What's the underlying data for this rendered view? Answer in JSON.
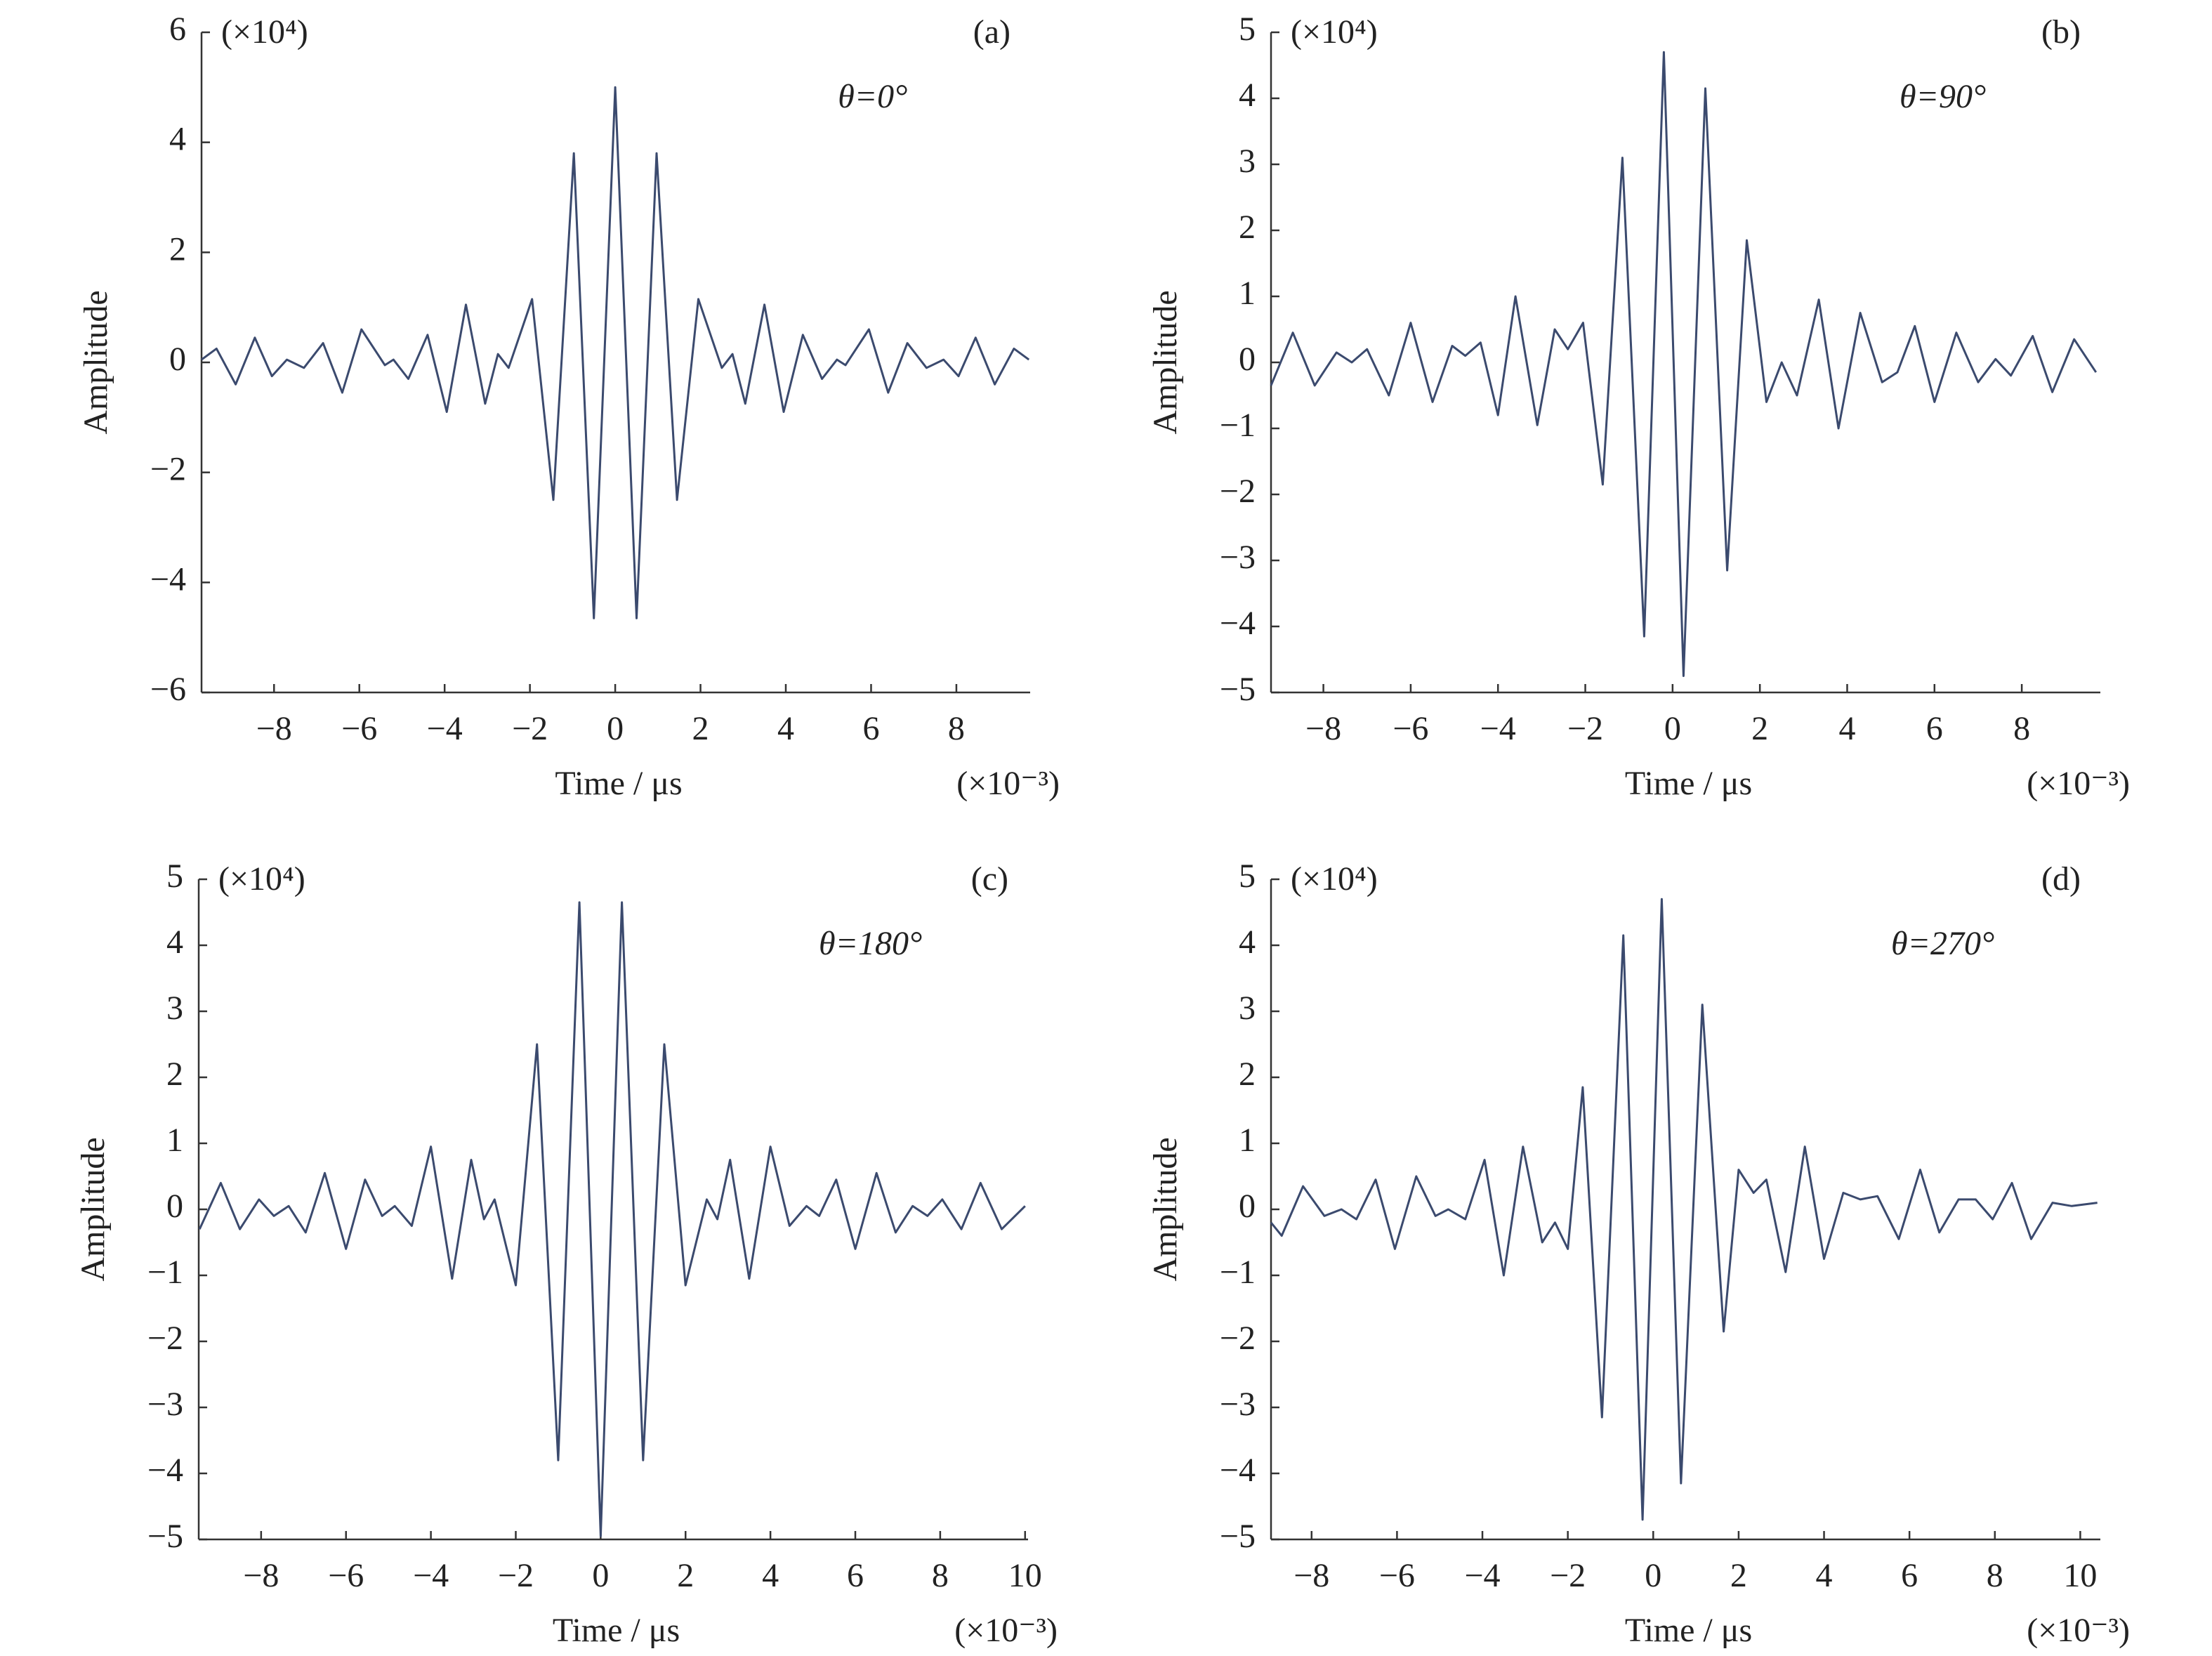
{
  "chart_data": [
    {
      "type": "line",
      "label": "(a)",
      "annotation": "θ=0°",
      "y_multiplier": "(×10⁴)",
      "x_multiplier": "(×10⁻³)",
      "xlabel": "Time / μs",
      "ylabel": "Amplitude",
      "color": "#3b4a6e",
      "xlim": [
        -9.7,
        9.73
      ],
      "ylim": [
        -6,
        6
      ],
      "xticks": [
        {
          "value": -8,
          "label": "−8"
        },
        {
          "value": -6,
          "label": "−6"
        },
        {
          "value": -4,
          "label": "−4"
        },
        {
          "value": -2,
          "label": "−2"
        },
        0,
        2,
        4,
        6,
        8
      ],
      "yticks": [
        {
          "value": -6,
          "label": "−6"
        },
        {
          "value": -4,
          "label": "−4"
        },
        {
          "value": -2,
          "label": "−2"
        },
        0,
        2,
        4,
        6
      ],
      "x": [
        -9.7,
        -9.35,
        -8.9,
        -8.45,
        -8.05,
        -7.7,
        -7.3,
        -6.85,
        -6.4,
        -5.95,
        -5.4,
        -5.2,
        -4.85,
        -4.4,
        -3.95,
        -3.5,
        -3.05,
        -2.75,
        -2.5,
        -1.95,
        -1.45,
        -0.97,
        -0.5,
        0,
        0.5,
        0.97,
        1.45,
        1.95,
        2.5,
        2.75,
        3.05,
        3.5,
        3.95,
        4.4,
        4.85,
        5.2,
        5.4,
        5.95,
        6.4,
        6.85,
        7.3,
        7.7,
        8.05,
        8.45,
        8.9,
        9.35,
        9.7
      ],
      "values": [
        0.05,
        0.25,
        -0.4,
        0.45,
        -0.25,
        0.05,
        -0.1,
        0.35,
        -0.55,
        0.6,
        -0.05,
        0.05,
        -0.3,
        0.5,
        -0.9,
        1.05,
        -0.75,
        0.15,
        -0.1,
        1.15,
        -2.5,
        3.8,
        -4.65,
        5.0,
        -4.65,
        3.8,
        -2.5,
        1.15,
        -0.1,
        0.15,
        -0.75,
        1.05,
        -0.9,
        0.5,
        -0.3,
        0.05,
        -0.05,
        0.6,
        -0.55,
        0.35,
        -0.1,
        0.05,
        -0.25,
        0.45,
        -0.4,
        0.25,
        0.05
      ]
    },
    {
      "type": "line",
      "label": "(b)",
      "annotation": "θ=90°",
      "y_multiplier": "(×10⁴)",
      "x_multiplier": "(×10⁻³)",
      "xlabel": "Time / μs",
      "ylabel": "Amplitude",
      "color": "#3b4a6e",
      "xlim": [
        -9.2,
        9.8
      ],
      "ylim": [
        -5,
        5
      ],
      "xticks": [
        {
          "value": -8,
          "label": "−8"
        },
        {
          "value": -6,
          "label": "−6"
        },
        {
          "value": -4,
          "label": "−4"
        },
        {
          "value": -2,
          "label": "−2"
        },
        0,
        2,
        4,
        6,
        8
      ],
      "yticks": [
        {
          "value": -5,
          "label": "−5"
        },
        {
          "value": -4,
          "label": "−4"
        },
        {
          "value": -3,
          "label": "−3"
        },
        {
          "value": -2,
          "label": "−2"
        },
        {
          "value": -1,
          "label": "−1"
        },
        0,
        1,
        2,
        3,
        4,
        5
      ],
      "x": [
        -9.2,
        -8.7,
        -8.2,
        -7.7,
        -7.35,
        -7.0,
        -6.5,
        -6.0,
        -5.5,
        -5.05,
        -4.75,
        -4.4,
        -4.0,
        -3.6,
        -3.1,
        -2.7,
        -2.4,
        -2.05,
        -1.6,
        -1.15,
        -0.65,
        -0.2,
        0.25,
        0.75,
        1.25,
        1.7,
        2.15,
        2.5,
        2.85,
        3.35,
        3.8,
        4.3,
        4.8,
        5.15,
        5.55,
        6.0,
        6.5,
        7.0,
        7.4,
        7.75,
        8.25,
        8.7,
        9.2,
        9.7
      ],
      "values": [
        -0.35,
        0.45,
        -0.35,
        0.15,
        0.0,
        0.2,
        -0.5,
        0.6,
        -0.6,
        0.25,
        0.1,
        0.3,
        -0.8,
        1.0,
        -0.95,
        0.5,
        0.2,
        0.6,
        -1.85,
        3.1,
        -4.15,
        4.7,
        -4.75,
        4.15,
        -3.15,
        1.85,
        -0.6,
        0.0,
        -0.5,
        0.95,
        -1.0,
        0.75,
        -0.3,
        -0.15,
        0.55,
        -0.6,
        0.45,
        -0.3,
        0.05,
        -0.2,
        0.4,
        -0.45,
        0.35,
        -0.15
      ]
    },
    {
      "type": "line",
      "label": "(c)",
      "annotation": "θ=180°",
      "y_multiplier": "(×10⁴)",
      "x_multiplier": "(×10⁻³)",
      "xlabel": "Time / μs",
      "ylabel": "Amplitude",
      "color": "#3b4a6e",
      "xlim": [
        -9.47,
        10.07
      ],
      "ylim": [
        -5,
        5
      ],
      "xticks": [
        {
          "value": -8,
          "label": "−8"
        },
        {
          "value": -6,
          "label": "−6"
        },
        {
          "value": -4,
          "label": "−4"
        },
        {
          "value": -2,
          "label": "−2"
        },
        0,
        2,
        4,
        6,
        8,
        10
      ],
      "yticks": [
        {
          "value": -5,
          "label": "−5"
        },
        {
          "value": -4,
          "label": "−4"
        },
        {
          "value": -3,
          "label": "−3"
        },
        {
          "value": -2,
          "label": "−2"
        },
        {
          "value": -1,
          "label": "−1"
        },
        0,
        1,
        2,
        3,
        4,
        5
      ],
      "x": [
        -9.45,
        -8.95,
        -8.5,
        -8.05,
        -7.7,
        -7.35,
        -6.95,
        -6.5,
        -6.0,
        -5.55,
        -5.15,
        -4.85,
        -4.45,
        -4.0,
        -3.5,
        -3.05,
        -2.75,
        -2.5,
        -2.0,
        -1.5,
        -1.0,
        -0.5,
        0,
        0.5,
        1.0,
        1.5,
        2.0,
        2.5,
        2.75,
        3.05,
        3.5,
        4.0,
        4.45,
        4.85,
        5.15,
        5.55,
        6.0,
        6.5,
        6.95,
        7.35,
        7.7,
        8.05,
        8.5,
        8.95,
        9.45,
        10.0
      ],
      "values": [
        -0.3,
        0.4,
        -0.3,
        0.15,
        -0.1,
        0.05,
        -0.35,
        0.55,
        -0.6,
        0.45,
        -0.1,
        0.05,
        -0.25,
        0.95,
        -1.05,
        0.75,
        -0.15,
        0.15,
        -1.15,
        2.5,
        -3.8,
        4.65,
        -4.95,
        4.65,
        -3.8,
        2.5,
        -1.15,
        0.15,
        -0.15,
        0.75,
        -1.05,
        0.95,
        -0.25,
        0.05,
        -0.1,
        0.45,
        -0.6,
        0.55,
        -0.35,
        0.05,
        -0.1,
        0.15,
        -0.3,
        0.4,
        -0.3,
        0.05
      ]
    },
    {
      "type": "line",
      "label": "(d)",
      "annotation": "θ=270°",
      "y_multiplier": "(×10⁴)",
      "x_multiplier": "(×10⁻³)",
      "xlabel": "Time / μs",
      "ylabel": "Amplitude",
      "color": "#3b4a6e",
      "xlim": [
        -8.95,
        10.47
      ],
      "ylim": [
        -5,
        5
      ],
      "xticks": [
        {
          "value": -8,
          "label": "−8"
        },
        {
          "value": -6,
          "label": "−6"
        },
        {
          "value": -4,
          "label": "−4"
        },
        {
          "value": -2,
          "label": "−2"
        },
        0,
        2,
        4,
        6,
        8,
        10
      ],
      "yticks": [
        {
          "value": -5,
          "label": "−5"
        },
        {
          "value": -4,
          "label": "−4"
        },
        {
          "value": -3,
          "label": "−3"
        },
        {
          "value": -2,
          "label": "−2"
        },
        {
          "value": -1,
          "label": "−1"
        },
        0,
        1,
        2,
        3,
        4,
        5
      ],
      "x": [
        -8.95,
        -8.7,
        -8.2,
        -7.7,
        -7.3,
        -6.95,
        -6.5,
        -6.05,
        -5.55,
        -5.1,
        -4.8,
        -4.4,
        -3.95,
        -3.5,
        -3.05,
        -2.6,
        -2.3,
        -2.0,
        -1.65,
        -1.2,
        -0.7,
        -0.25,
        0.2,
        0.65,
        1.15,
        1.65,
        2.0,
        2.35,
        2.65,
        3.1,
        3.55,
        4.0,
        4.45,
        4.85,
        5.25,
        5.75,
        6.25,
        6.7,
        7.15,
        7.55,
        7.95,
        8.4,
        8.85,
        9.35,
        9.8,
        10.4
      ],
      "values": [
        -0.2,
        -0.4,
        0.35,
        -0.1,
        0.0,
        -0.15,
        0.45,
        -0.6,
        0.5,
        -0.1,
        0.0,
        -0.15,
        0.75,
        -1.0,
        0.95,
        -0.5,
        -0.2,
        -0.6,
        1.85,
        -3.15,
        4.15,
        -4.7,
        4.7,
        -4.15,
        3.1,
        -1.85,
        0.6,
        0.25,
        0.45,
        -0.95,
        0.95,
        -0.75,
        0.25,
        0.15,
        0.2,
        -0.45,
        0.6,
        -0.35,
        0.15,
        0.15,
        -0.15,
        0.4,
        -0.45,
        0.1,
        0.05,
        0.1
      ]
    }
  ]
}
